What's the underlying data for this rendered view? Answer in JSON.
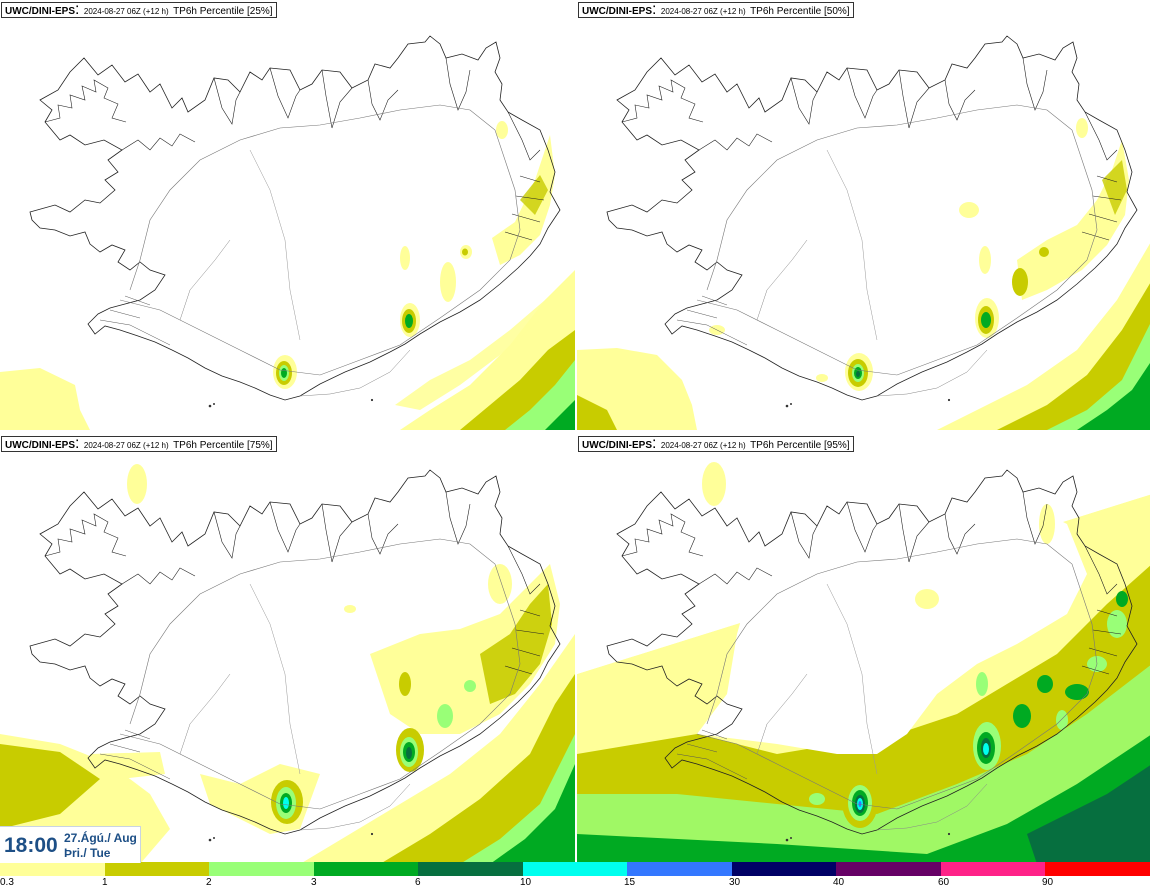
{
  "panels": [
    {
      "source": "UWC/DINI-EPS",
      "run": "2024-08-27 06Z (+12 h)",
      "desc": "TP6h Percentile [25%]"
    },
    {
      "source": "UWC/DINI-EPS",
      "run": "2024-08-27 06Z (+12 h)",
      "desc": "TP6h Percentile [50%]"
    },
    {
      "source": "UWC/DINI-EPS",
      "run": "2024-08-27 06Z (+12 h)",
      "desc": "TP6h Percentile [75%]"
    },
    {
      "source": "UWC/DINI-EPS",
      "run": "2024-08-27 06Z (+12 h)",
      "desc": "TP6h Percentile [95%]"
    }
  ],
  "time_box": {
    "time": "18:00",
    "date_line1": "27.Ágú./ Aug",
    "date_line2": "Þri./ Tue"
  },
  "legend": {
    "colors": [
      "#ffff99",
      "#c8cc00",
      "#99ff77",
      "#00aa22",
      "#066f3f",
      "#00ffee",
      "#3377ff",
      "#000066",
      "#660066",
      "#ff2288",
      "#ff0000"
    ],
    "labels": [
      "0.3",
      "1",
      "2",
      "3",
      "6",
      "10",
      "15",
      "30",
      "40",
      "60",
      "90"
    ]
  }
}
